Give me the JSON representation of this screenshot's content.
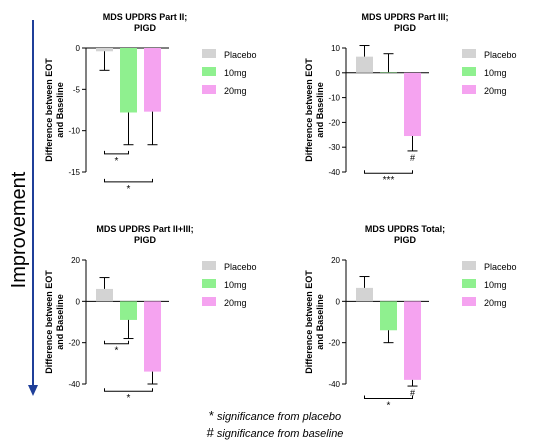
{
  "side_label": "Improvement",
  "footnotes": [
    {
      "symbol": "*",
      "text": "significance from placebo"
    },
    {
      "symbol": "#",
      "text": "significance from baseline"
    }
  ],
  "colors": {
    "placebo": "#d3d3d3",
    "10mg": "#8ff08f",
    "20mg": "#f5a3f0",
    "arrow": "#1f3f99"
  },
  "chart_data": [
    {
      "type": "bar",
      "title": "MDS UPDRS Part II;\nPIGD",
      "ylabel": "Difference between EOT\nand Baseline",
      "ylim": [
        -15,
        0
      ],
      "yticks": [
        0,
        -5,
        -10,
        -15
      ],
      "categories": [
        "Placebo",
        "10mg",
        "20mg"
      ],
      "values": [
        -0.4,
        -7.8,
        -7.7
      ],
      "errors": [
        2.3,
        3.9,
        4.0
      ],
      "legend": [
        "Placebo",
        "10mg",
        "20mg"
      ],
      "bar_marks": [
        "",
        "",
        ""
      ],
      "brackets": [
        {
          "from": 0,
          "to": 1,
          "y": -12.8,
          "label": "*"
        },
        {
          "from": 0,
          "to": 2,
          "y": -16.2,
          "label": "*"
        }
      ]
    },
    {
      "type": "bar",
      "title": "MDS UPDRS Part III;\nPIGD",
      "ylabel": "Difference between EOT\nand Baseline",
      "ylim": [
        -40,
        10
      ],
      "yticks": [
        10,
        0,
        -10,
        -20,
        -30,
        -40
      ],
      "categories": [
        "Placebo",
        "10mg",
        "20mg"
      ],
      "values": [
        6.5,
        0.2,
        -25.5
      ],
      "errors": [
        4.5,
        7.5,
        6.0
      ],
      "legend": [
        "Placebo",
        "10mg",
        "20mg"
      ],
      "bar_marks": [
        "",
        "",
        "#"
      ],
      "brackets": [
        {
          "from": 0,
          "to": 2,
          "y": -40.5,
          "label": "***"
        }
      ]
    },
    {
      "type": "bar",
      "title": "MDS UPDRS Part  II+III;\nPIGD",
      "ylabel": "Difference between EOT\nand Baseline",
      "ylim": [
        -40,
        20
      ],
      "yticks": [
        20,
        0,
        -20,
        -40
      ],
      "categories": [
        "Placebo",
        "10mg",
        "20mg"
      ],
      "values": [
        6,
        -9,
        -34
      ],
      "errors": [
        5.5,
        9,
        6
      ],
      "legend": [
        "Placebo",
        "10mg",
        "20mg"
      ],
      "bar_marks": [
        "",
        "",
        ""
      ],
      "brackets": [
        {
          "from": 0,
          "to": 1,
          "y": -20.5,
          "label": "*"
        },
        {
          "from": 0,
          "to": 2,
          "y": -43.5,
          "label": "*"
        }
      ]
    },
    {
      "type": "bar",
      "title": "MDS UPDRS Total;\nPIGD",
      "ylabel": "Difference between EOT\nand Baseline",
      "ylim": [
        -40,
        20
      ],
      "yticks": [
        20,
        0,
        -20,
        -40
      ],
      "categories": [
        "Placebo",
        "10mg",
        "20mg"
      ],
      "values": [
        6.5,
        -14,
        -38
      ],
      "errors": [
        5.5,
        6,
        3
      ],
      "legend": [
        "Placebo",
        "10mg",
        "20mg"
      ],
      "bar_marks": [
        "",
        "",
        "#"
      ],
      "brackets": [
        {
          "from": 0,
          "to": 2,
          "y": -47,
          "label": "*"
        }
      ]
    }
  ]
}
